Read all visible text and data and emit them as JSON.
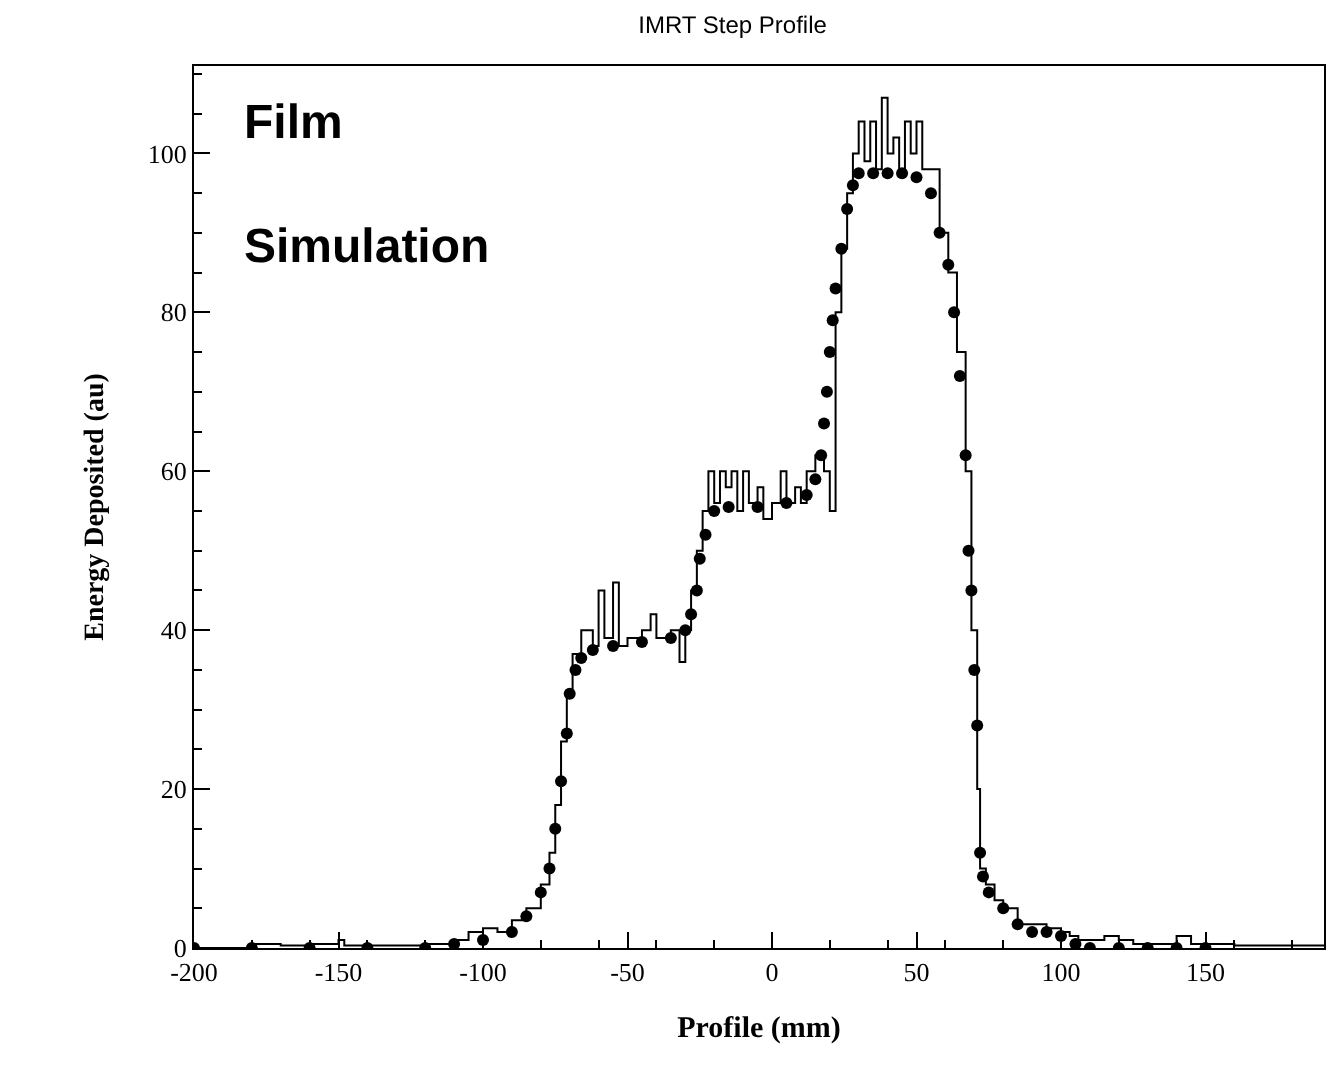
{
  "chart_data": {
    "type": "scatter",
    "title": "IMRT Step Profile",
    "xlabel": "Profile (mm)",
    "ylabel": "Energy Deposited (au)",
    "annotations": [
      "Film",
      "Simulation"
    ],
    "xlim": [
      -200,
      191
    ],
    "xticks": [
      -200,
      -150,
      -100,
      -50,
      0,
      50,
      100,
      150
    ],
    "ylim": [
      0,
      111
    ],
    "yticks": [
      0,
      20,
      40,
      60,
      80,
      100
    ],
    "legend": false,
    "series": [
      {
        "marker": "circle",
        "color": "#000000",
        "x": [
          -200,
          -180,
          -160,
          -140,
          -120,
          -110,
          -100,
          -90,
          -85,
          -80,
          -77,
          -75,
          -73,
          -71,
          -70,
          -68,
          -66,
          -62,
          -55,
          -45,
          -35,
          -30,
          -28,
          -26,
          -25,
          -23,
          -20,
          -15,
          -5,
          5,
          12,
          15,
          17,
          18,
          19,
          20,
          21,
          22,
          24,
          26,
          28,
          30,
          35,
          40,
          45,
          50,
          55,
          58,
          61,
          63,
          65,
          67,
          68,
          69,
          70,
          71,
          72,
          73,
          75,
          80,
          85,
          90,
          95,
          100,
          105,
          110,
          120,
          130,
          140,
          150
        ],
        "values": [
          0,
          0,
          0,
          0,
          0,
          0.5,
          1,
          2,
          4,
          7,
          10,
          15,
          21,
          27,
          32,
          35,
          36.5,
          37.5,
          38,
          38.5,
          39,
          40,
          42,
          45,
          49,
          52,
          55,
          55.5,
          55.5,
          56,
          57,
          59,
          62,
          66,
          70,
          75,
          79,
          83,
          88,
          93,
          96,
          97.5,
          97.5,
          97.5,
          97.5,
          97,
          95,
          90,
          86,
          80,
          72,
          62,
          50,
          45,
          35,
          28,
          12,
          9,
          7,
          5,
          3,
          2,
          2,
          1.5,
          0.5,
          0,
          0,
          0,
          0,
          0
        ]
      },
      {
        "type": "step",
        "color": "#000000",
        "x": [
          -200,
          -180,
          -170,
          -160,
          -150,
          -148,
          -120,
          -110,
          -105,
          -100,
          -95,
          -90,
          -85,
          -80,
          -77,
          -75,
          -73,
          -71,
          -69,
          -66,
          -62,
          -60,
          -58,
          -55,
          -53,
          -50,
          -45,
          -42,
          -40,
          -35,
          -32,
          -30,
          -28,
          -26,
          -24,
          -22,
          -20,
          -18,
          -16,
          -14,
          -12,
          -10,
          -8,
          -5,
          -3,
          0,
          3,
          5,
          8,
          10,
          12,
          15,
          18,
          20,
          22,
          24,
          26,
          28,
          30,
          32,
          34,
          36,
          38,
          40,
          42,
          44,
          46,
          48,
          50,
          52,
          55,
          58,
          61,
          64,
          67,
          69,
          71,
          72,
          74,
          77,
          80,
          85,
          90,
          95,
          100,
          103,
          106,
          110,
          115,
          120,
          125,
          140,
          145,
          150,
          160,
          191
        ],
        "values": [
          0,
          0.5,
          0.3,
          0.5,
          1,
          0.3,
          0.5,
          1,
          2,
          2.5,
          2,
          3.5,
          5,
          8,
          12,
          18,
          26,
          32,
          37,
          40,
          38,
          45,
          39,
          46,
          38,
          39,
          40,
          42,
          39,
          40,
          36,
          40,
          45,
          50,
          55,
          60,
          56,
          60,
          58,
          60,
          55,
          60,
          56,
          58,
          54,
          56,
          60,
          56,
          58,
          56,
          60,
          62,
          60,
          55,
          80,
          88,
          95,
          100,
          104,
          99,
          104,
          98,
          107,
          100,
          102,
          98,
          104,
          100,
          104,
          98,
          98,
          90,
          85,
          75,
          60,
          40,
          20,
          10,
          8,
          6,
          5,
          3,
          3,
          2.5,
          2,
          1.5,
          1,
          1,
          1.5,
          1,
          0.5,
          1.5,
          0.5,
          0.5,
          0.3,
          0.3
        ]
      }
    ]
  }
}
